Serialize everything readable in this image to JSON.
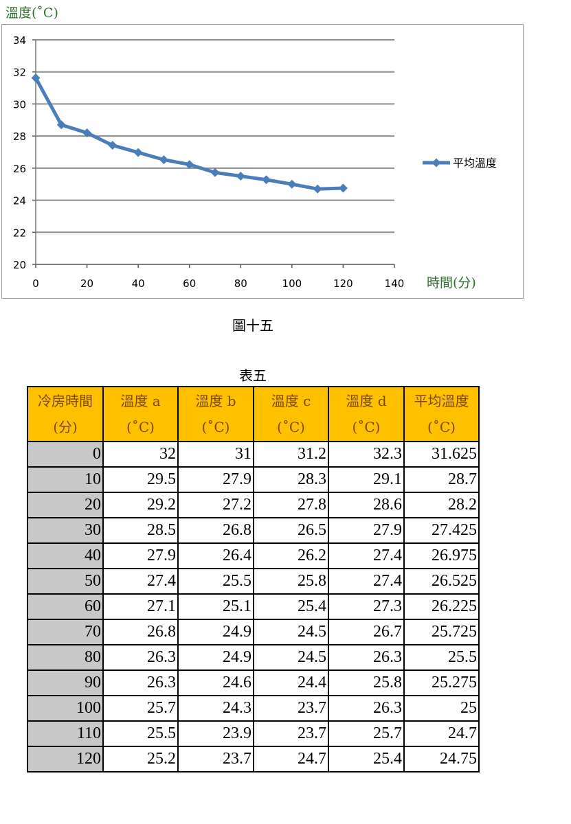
{
  "chart_data": {
    "type": "line",
    "ylabel": "溫度(˚C)",
    "xlabel": "時間(分)",
    "x": [
      0,
      10,
      20,
      30,
      40,
      50,
      60,
      70,
      80,
      90,
      100,
      110,
      120
    ],
    "series": [
      {
        "name": "平均溫度",
        "values": [
          31.625,
          28.7,
          28.2,
          27.425,
          26.975,
          26.525,
          26.225,
          25.725,
          25.5,
          25.275,
          25,
          24.7,
          24.75
        ]
      }
    ],
    "xlim": [
      0,
      140
    ],
    "ylim": [
      20,
      34
    ],
    "xticks": [
      "0",
      "20",
      "40",
      "60",
      "80",
      "100",
      "120",
      "140"
    ],
    "yticks": [
      "20",
      "22",
      "24",
      "26",
      "28",
      "30",
      "32",
      "34"
    ],
    "grid": true,
    "legend_position": "right",
    "series_color": "#4a7ebb",
    "grid_color": "#8c8c8c"
  },
  "figure_caption": "圖十五",
  "table": {
    "caption": "表五",
    "header_color": "#ffc000",
    "rowhead_color": "#c8c8c8",
    "headers": [
      {
        "line1": "冷房時間",
        "line2": "(分)"
      },
      {
        "line1": "溫度 a",
        "line2": "(˚C)"
      },
      {
        "line1": "溫度 b",
        "line2": "(˚C)"
      },
      {
        "line1": "溫度 c",
        "line2": "(˚C)"
      },
      {
        "line1": "溫度 d",
        "line2": "(˚C)"
      },
      {
        "line1": "平均溫度",
        "line2": "(˚C)"
      }
    ],
    "rows": [
      [
        "0",
        "32",
        "31",
        "31.2",
        "32.3",
        "31.625"
      ],
      [
        "10",
        "29.5",
        "27.9",
        "28.3",
        "29.1",
        "28.7"
      ],
      [
        "20",
        "29.2",
        "27.2",
        "27.8",
        "28.6",
        "28.2"
      ],
      [
        "30",
        "28.5",
        "26.8",
        "26.5",
        "27.9",
        "27.425"
      ],
      [
        "40",
        "27.9",
        "26.4",
        "26.2",
        "27.4",
        "26.975"
      ],
      [
        "50",
        "27.4",
        "25.5",
        "25.8",
        "27.4",
        "26.525"
      ],
      [
        "60",
        "27.1",
        "25.1",
        "25.4",
        "27.3",
        "26.225"
      ],
      [
        "70",
        "26.8",
        "24.9",
        "24.5",
        "26.7",
        "25.725"
      ],
      [
        "80",
        "26.3",
        "24.9",
        "24.5",
        "26.3",
        "25.5"
      ],
      [
        "90",
        "26.3",
        "24.6",
        "24.4",
        "25.8",
        "25.275"
      ],
      [
        "100",
        "25.7",
        "24.3",
        "23.7",
        "26.3",
        "25"
      ],
      [
        "110",
        "25.5",
        "23.9",
        "23.7",
        "25.7",
        "24.7"
      ],
      [
        "120",
        "25.2",
        "23.7",
        "24.7",
        "25.4",
        "24.75"
      ]
    ]
  }
}
